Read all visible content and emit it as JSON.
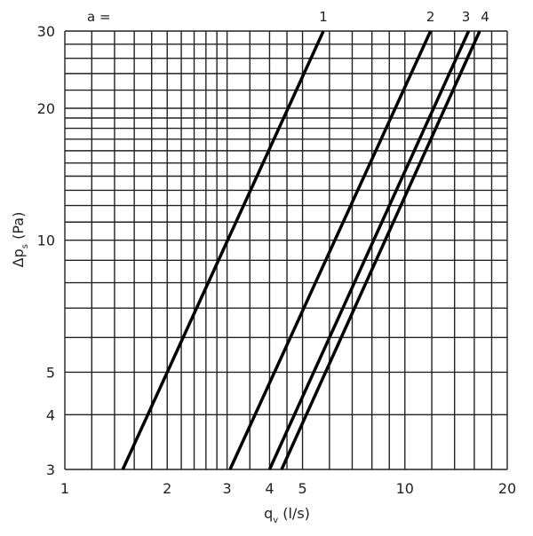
{
  "chart_data": {
    "type": "line",
    "title": "",
    "xlabel": "q",
    "xlabel_sub": "v",
    "xlabel_unit": " (l/s)",
    "ylabel": "Δp",
    "ylabel_sub": "s",
    "ylabel_unit": " (Pa)",
    "x_scale": "log",
    "y_scale": "log",
    "xlim": [
      1,
      20
    ],
    "ylim": [
      3,
      30
    ],
    "grid": true,
    "x_ticks": [
      1,
      2,
      3,
      4,
      5,
      10,
      20
    ],
    "y_ticks": [
      3,
      4,
      5,
      10,
      20,
      30
    ],
    "x_grid": [
      1,
      1.2,
      1.4,
      1.6,
      1.8,
      2,
      2.2,
      2.4,
      2.6,
      2.8,
      3,
      3.5,
      4,
      4.5,
      5,
      6,
      7,
      8,
      9,
      10,
      12,
      14,
      16,
      18,
      20
    ],
    "y_grid": [
      3,
      4,
      5,
      6,
      7,
      8,
      9,
      10,
      11,
      12,
      13,
      14,
      15,
      16,
      17,
      18,
      19,
      20,
      22,
      24,
      26,
      28,
      30
    ],
    "legend_prefix": "a =",
    "series": [
      {
        "name": "1",
        "x": [
          1.48,
          5.76
        ],
        "y": [
          3,
          30
        ]
      },
      {
        "name": "2",
        "x": [
          3.06,
          11.9
        ],
        "y": [
          3,
          30
        ]
      },
      {
        "name": "3",
        "x": [
          4.0,
          15.4
        ],
        "y": [
          3,
          30
        ]
      },
      {
        "name": "4",
        "x": [
          4.34,
          16.6
        ],
        "y": [
          3,
          30
        ]
      }
    ]
  }
}
